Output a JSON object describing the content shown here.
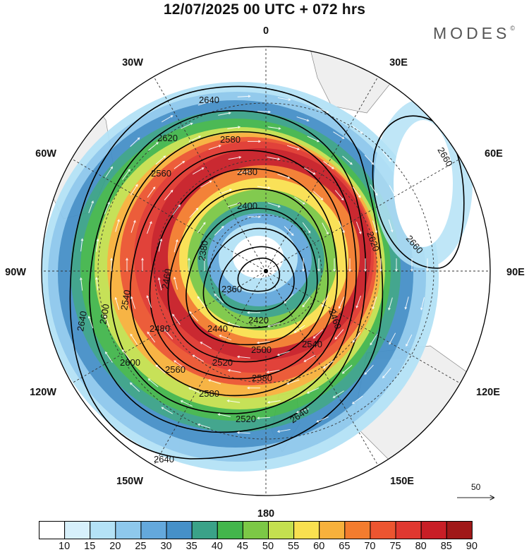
{
  "header": {
    "title": "12/07/2025  00 UTC  + 072 hrs",
    "brand": "MODES",
    "brand_mark": "©"
  },
  "map": {
    "projection": "south-polar-stereographic",
    "longitude_labels": [
      {
        "text": "0",
        "lon": 0
      },
      {
        "text": "30E",
        "lon": 30
      },
      {
        "text": "60E",
        "lon": 60
      },
      {
        "text": "90E",
        "lon": 90
      },
      {
        "text": "120E",
        "lon": 120
      },
      {
        "text": "150E",
        "lon": 150
      },
      {
        "text": "180",
        "lon": 180
      },
      {
        "text": "150W",
        "lon": -150
      },
      {
        "text": "120W",
        "lon": -120
      },
      {
        "text": "90W",
        "lon": -90
      },
      {
        "text": "60W",
        "lon": -60
      },
      {
        "text": "30W",
        "lon": -30
      }
    ],
    "latitude_circles_deg": [
      -20,
      -40,
      -60,
      -80
    ],
    "wind_speed_fill": "jet centred over the pole, strongest (80-90) in a ring around 60-70S, weak 10-20 fringe near 30-40S",
    "height_contours": [
      {
        "label": "2640",
        "value": 2640
      },
      {
        "label": "2620",
        "value": 2620
      },
      {
        "label": "2600",
        "value": 2600
      },
      {
        "label": "2580",
        "value": 2580
      },
      {
        "label": "2560",
        "value": 2560
      },
      {
        "label": "2540",
        "value": 2540
      },
      {
        "label": "2520",
        "value": 2520
      },
      {
        "label": "2500",
        "value": 2500
      },
      {
        "label": "2480",
        "value": 2480
      },
      {
        "label": "2460",
        "value": 2460
      },
      {
        "label": "2440",
        "value": 2440
      },
      {
        "label": "2420",
        "value": 2420
      },
      {
        "label": "2400",
        "value": 2400
      },
      {
        "label": "2380",
        "value": 2380
      },
      {
        "label": "2360",
        "value": 2360
      },
      {
        "label": "2660",
        "value": 2660
      }
    ],
    "vector_reference": "50"
  },
  "colorbar": {
    "colors": [
      "#ffffff",
      "#d7f0fb",
      "#b4e2f6",
      "#8ec8ec",
      "#64a8dc",
      "#4690c8",
      "#3aa288",
      "#43b64c",
      "#7cc846",
      "#c4e050",
      "#f9e050",
      "#f7b13c",
      "#f37c2e",
      "#ec5530",
      "#e03830",
      "#c81e26",
      "#a01818"
    ],
    "labels": [
      "10",
      "15",
      "20",
      "25",
      "30",
      "35",
      "40",
      "45",
      "50",
      "55",
      "60",
      "65",
      "70",
      "75",
      "80",
      "85",
      "90"
    ]
  }
}
